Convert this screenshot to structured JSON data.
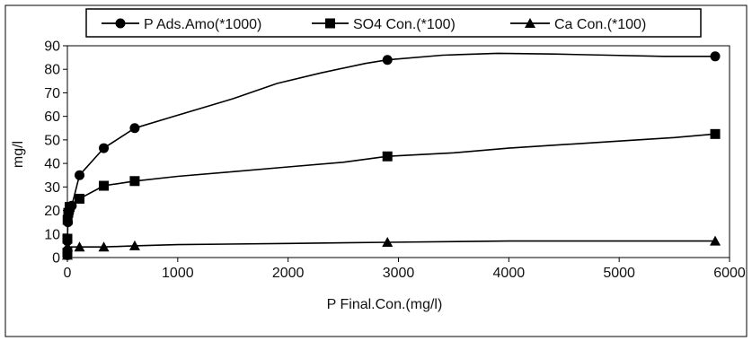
{
  "chart_data": {
    "type": "scatter",
    "xlabel": "P Final.Con.(mg/l)",
    "ylabel": "mg/l",
    "xlim": [
      0,
      6000
    ],
    "ylim": [
      0,
      90
    ],
    "x_ticks": [
      0,
      1000,
      2000,
      3000,
      4000,
      5000,
      6000
    ],
    "y_ticks": [
      0,
      10,
      20,
      30,
      40,
      50,
      60,
      70,
      80,
      90
    ],
    "grid": false,
    "legend_position": "top",
    "series": [
      {
        "name": "P Ads.Amo(*1000)",
        "marker": "circle",
        "color": "#000000",
        "x": [
          0,
          0,
          0,
          5,
          15,
          40,
          110,
          330,
          610,
          2900,
          5870
        ],
        "y": [
          1,
          3,
          7,
          15,
          19,
          22,
          35,
          46.5,
          55,
          84,
          85.5
        ],
        "curve_x": [
          0,
          5,
          15,
          40,
          110,
          330,
          610,
          1000,
          1500,
          1900,
          2300,
          2700,
          2900,
          3400,
          3900,
          4400,
          4900,
          5400,
          5870
        ],
        "curve_y": [
          7,
          15,
          19,
          22,
          35,
          46.5,
          55,
          60.5,
          67.5,
          74,
          78.5,
          82.5,
          84,
          86,
          86.8,
          86.5,
          86,
          85.5,
          85.5
        ]
      },
      {
        "name": "SO4 Con.(*100)",
        "marker": "square",
        "color": "#000000",
        "x": [
          0,
          0,
          2,
          8,
          20,
          110,
          330,
          610,
          2900,
          5870
        ],
        "y": [
          2,
          8,
          16,
          19,
          21.5,
          25,
          30.5,
          32.5,
          43,
          52.5
        ],
        "curve_x": [
          2,
          8,
          20,
          110,
          330,
          610,
          1000,
          1500,
          2000,
          2500,
          2900,
          3500,
          4000,
          4500,
          5000,
          5500,
          5870
        ],
        "curve_y": [
          16,
          19,
          21.5,
          25,
          30.5,
          32.5,
          34.5,
          36.5,
          38.5,
          40.5,
          43,
          44.5,
          46.5,
          48,
          49.5,
          51,
          52.5
        ]
      },
      {
        "name": "Ca Con.(*100)",
        "marker": "triangle",
        "color": "#000000",
        "x": [
          0,
          2,
          110,
          330,
          610,
          2900,
          5870
        ],
        "y": [
          1,
          4.5,
          4.5,
          4.5,
          5,
          6.5,
          7
        ],
        "curve_x": [
          2,
          110,
          330,
          610,
          1000,
          2000,
          2900,
          4000,
          5000,
          5870
        ],
        "curve_y": [
          4.5,
          4.5,
          4.5,
          5,
          5.5,
          6,
          6.5,
          7,
          7,
          7
        ]
      }
    ]
  }
}
